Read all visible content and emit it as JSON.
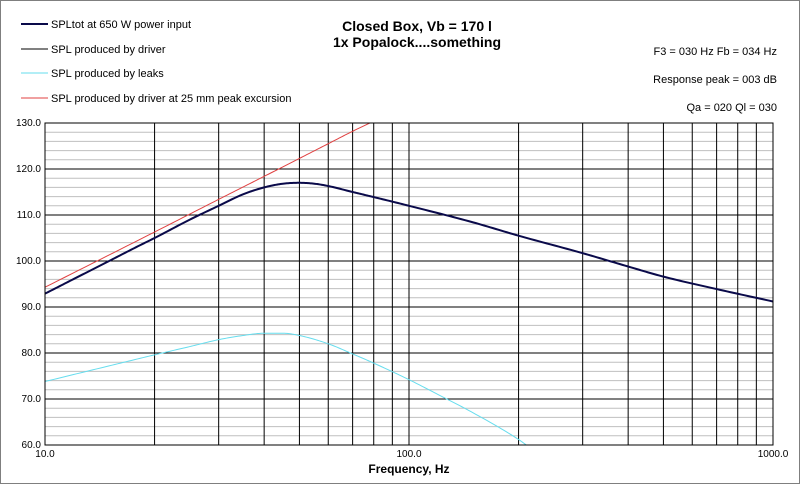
{
  "chart_data": {
    "type": "line",
    "title": "Closed Box, Vb = 170 l",
    "subtitle": "1x Popalock....something",
    "xlabel": "Frequency, Hz",
    "ylabel": "",
    "x_scale": "log",
    "xlim": [
      10,
      1000
    ],
    "ylim": [
      60,
      130
    ],
    "x_tick_labels": [
      "10.0",
      "100.0",
      "1000.0"
    ],
    "y_tick_labels": [
      "60.0",
      "70.0",
      "80.0",
      "90.0",
      "100.0",
      "110.0",
      "120.0",
      "130.0"
    ],
    "grid": true,
    "legend_position": "top-left",
    "annotations": [
      "F3 = 030  Hz  Fb = 034  Hz",
      "Response peak = 003  dB",
      "Qa = 020   Ql = 030"
    ],
    "series": [
      {
        "name": "SPLtot at 650 W power input",
        "color": "#0a0a4a",
        "x": [
          10,
          12,
          15,
          18,
          20,
          25,
          30,
          35,
          40,
          45,
          50,
          55,
          60,
          70,
          80,
          100,
          150,
          200,
          300,
          400,
          500,
          700,
          1000
        ],
        "y": [
          92.9,
          96.1,
          100.0,
          103.2,
          105.0,
          109.0,
          112.0,
          114.5,
          116.0,
          116.8,
          117.0,
          116.8,
          116.3,
          115.0,
          113.9,
          112.0,
          108.4,
          105.5,
          101.7,
          98.8,
          96.6,
          93.9,
          91.2
        ]
      },
      {
        "name": "SPL produced by driver",
        "color": "#000000",
        "x": [],
        "y": []
      },
      {
        "name": "SPL produced by leaks",
        "color": "#66ddee",
        "x": [
          10,
          15,
          20,
          25,
          30,
          35,
          40,
          45,
          50,
          60,
          70,
          80,
          100,
          120,
          150,
          200,
          210
        ],
        "y": [
          73.8,
          77.2,
          79.6,
          81.4,
          82.9,
          83.8,
          84.3,
          84.3,
          83.8,
          82.0,
          79.8,
          77.8,
          74.2,
          71.0,
          67.0,
          61.2,
          60.0
        ]
      },
      {
        "name": "SPL produced by driver at 25 mm peak excursion",
        "color": "#e04040",
        "x": [
          10,
          20,
          30,
          40,
          50,
          60,
          70,
          80
        ],
        "y": [
          94.3,
          106.3,
          113.4,
          118.4,
          122.3,
          125.5,
          128.2,
          130.4
        ]
      }
    ]
  }
}
